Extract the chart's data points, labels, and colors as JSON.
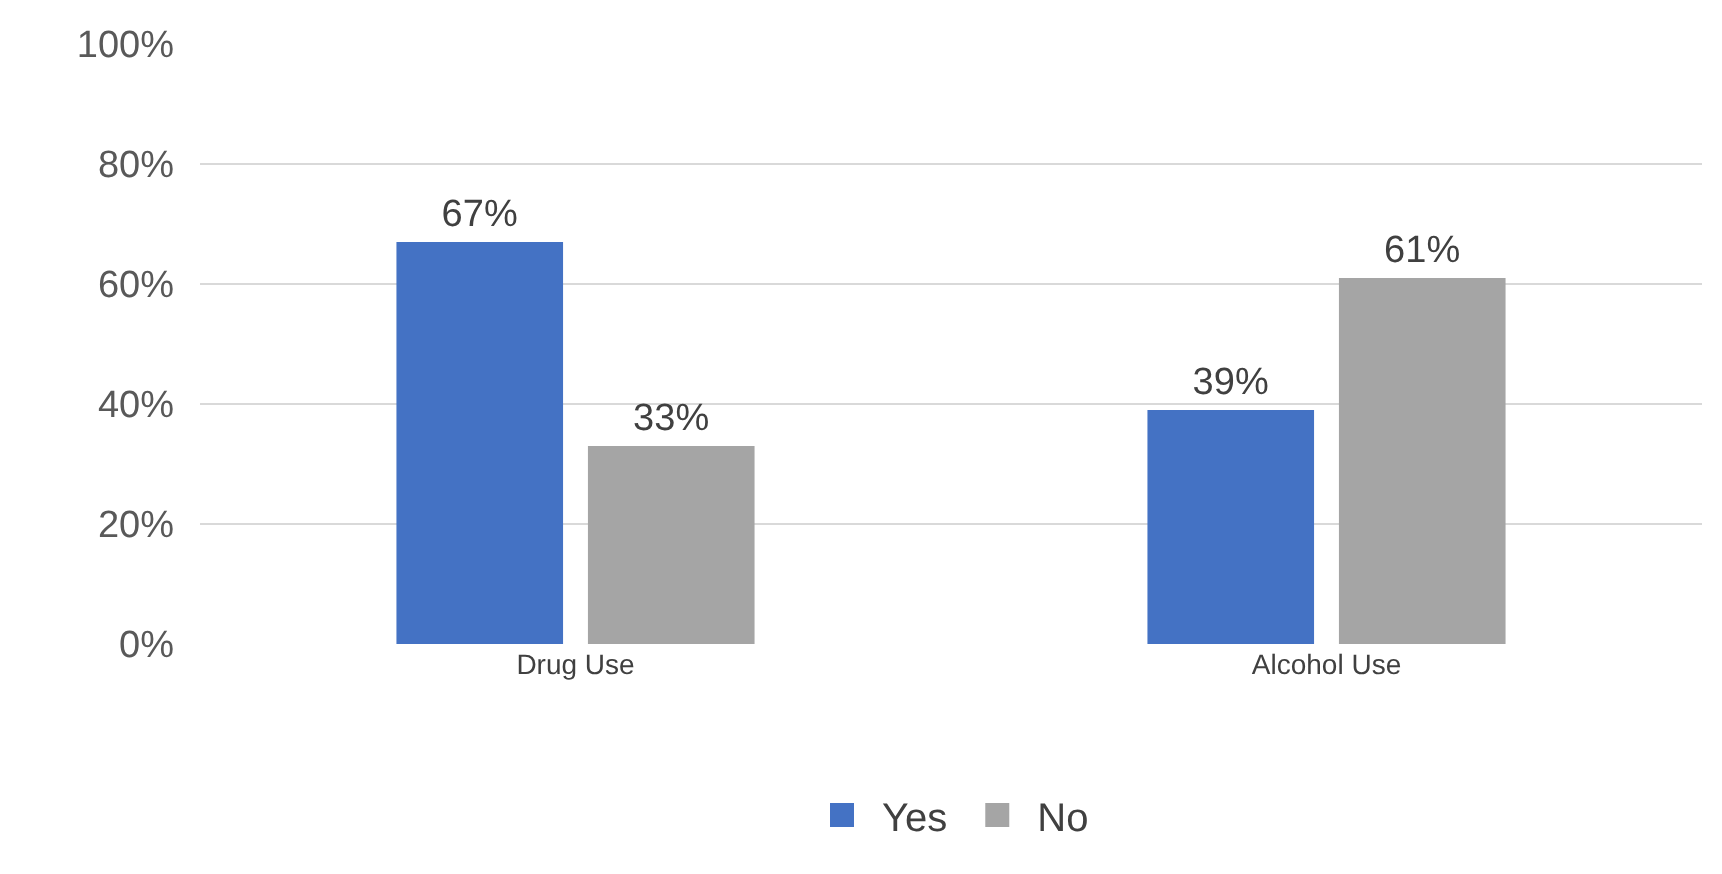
{
  "chart_data": {
    "type": "bar",
    "categories": [
      "Drug Use",
      "Alcohol Use"
    ],
    "series": [
      {
        "name": "Yes",
        "color": "#4472c4",
        "values": [
          67,
          39
        ],
        "value_labels": [
          "67%",
          "39%"
        ]
      },
      {
        "name": "No",
        "color": "#a5a5a5",
        "values": [
          33,
          61
        ],
        "value_labels": [
          "33%",
          "61%"
        ]
      }
    ],
    "ylim": [
      0,
      100
    ],
    "yticks": [
      {
        "value": 0,
        "label": "0%"
      },
      {
        "value": 20,
        "label": "20%"
      },
      {
        "value": 40,
        "label": "40%"
      },
      {
        "value": 60,
        "label": "60%"
      },
      {
        "value": 80,
        "label": "80%"
      },
      {
        "value": 100,
        "label": "100%"
      }
    ],
    "grid": "y",
    "legend": "bottom"
  }
}
